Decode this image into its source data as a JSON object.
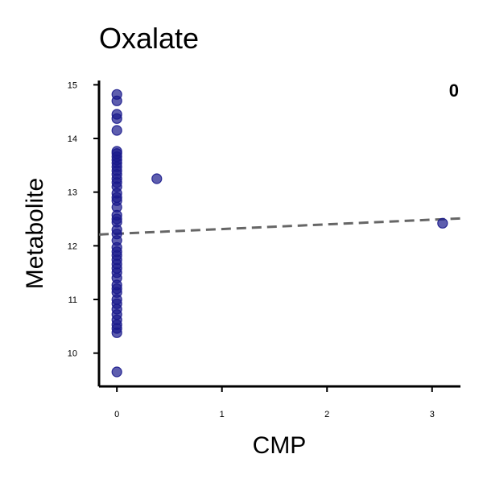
{
  "chart_data": {
    "type": "scatter",
    "title": "Oxalate",
    "xlabel": "CMP",
    "ylabel": "Metabolite",
    "annotation": "0",
    "xlim": [
      -0.17,
      3.27
    ],
    "ylim": [
      9.38,
      15.08
    ],
    "xticks": [
      0,
      1,
      2,
      3
    ],
    "yticks": [
      10,
      11,
      12,
      13,
      14,
      15
    ],
    "grid": false,
    "point_color": "#1a1a8c",
    "trend_color": "#666666",
    "trendline": {
      "x": [
        -0.17,
        3.27
      ],
      "y": [
        12.21,
        12.51
      ]
    },
    "points": [
      {
        "x": 0,
        "y": 14.82
      },
      {
        "x": 0,
        "y": 14.7
      },
      {
        "x": 0,
        "y": 14.45
      },
      {
        "x": 0,
        "y": 14.37
      },
      {
        "x": 0,
        "y": 14.15
      },
      {
        "x": 0,
        "y": 13.76
      },
      {
        "x": 0,
        "y": 13.72
      },
      {
        "x": 0,
        "y": 13.66
      },
      {
        "x": 0,
        "y": 13.6
      },
      {
        "x": 0,
        "y": 13.54
      },
      {
        "x": 0,
        "y": 13.47
      },
      {
        "x": 0,
        "y": 13.4
      },
      {
        "x": 0,
        "y": 13.33
      },
      {
        "x": 0,
        "y": 13.25
      },
      {
        "x": 0,
        "y": 13.18
      },
      {
        "x": 0,
        "y": 13.1
      },
      {
        "x": 0,
        "y": 12.98
      },
      {
        "x": 0,
        "y": 12.9
      },
      {
        "x": 0,
        "y": 12.84
      },
      {
        "x": 0,
        "y": 12.72
      },
      {
        "x": 0,
        "y": 12.57
      },
      {
        "x": 0,
        "y": 12.5
      },
      {
        "x": 0,
        "y": 12.44
      },
      {
        "x": 0,
        "y": 12.3
      },
      {
        "x": 0,
        "y": 12.22
      },
      {
        "x": 0,
        "y": 12.1
      },
      {
        "x": 0,
        "y": 11.97
      },
      {
        "x": 0,
        "y": 11.89
      },
      {
        "x": 0,
        "y": 11.82
      },
      {
        "x": 0,
        "y": 11.74
      },
      {
        "x": 0,
        "y": 11.66
      },
      {
        "x": 0,
        "y": 11.58
      },
      {
        "x": 0,
        "y": 11.5
      },
      {
        "x": 0,
        "y": 11.4
      },
      {
        "x": 0,
        "y": 11.27
      },
      {
        "x": 0,
        "y": 11.2
      },
      {
        "x": 0,
        "y": 11.13
      },
      {
        "x": 0,
        "y": 11.0
      },
      {
        "x": 0,
        "y": 10.92
      },
      {
        "x": 0,
        "y": 10.82
      },
      {
        "x": 0,
        "y": 10.72
      },
      {
        "x": 0,
        "y": 10.62
      },
      {
        "x": 0,
        "y": 10.53
      },
      {
        "x": 0,
        "y": 10.46
      },
      {
        "x": 0,
        "y": 10.38
      },
      {
        "x": 0,
        "y": 9.65
      },
      {
        "x": 0.38,
        "y": 13.25
      },
      {
        "x": 3.1,
        "y": 12.42
      }
    ]
  }
}
